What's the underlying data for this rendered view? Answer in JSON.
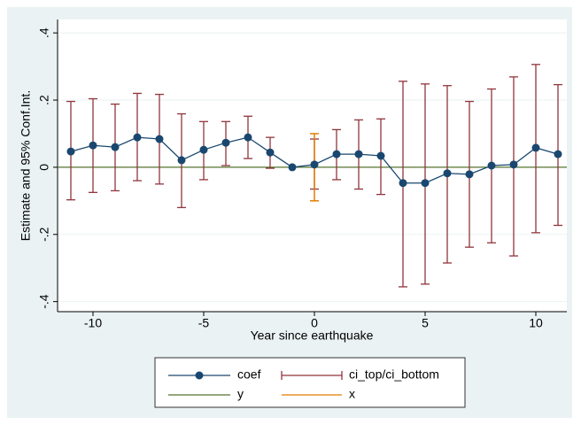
{
  "chart_data": {
    "type": "line",
    "x_label": "Year since earthquake",
    "y_label": "Estimate and 95% Conf.Int.",
    "x": [
      -11,
      -10,
      -9,
      -8,
      -7,
      -6,
      -5,
      -4,
      -3,
      -2,
      -1,
      0,
      1,
      2,
      3,
      4,
      5,
      6,
      7,
      8,
      9,
      10,
      11
    ],
    "series": [
      {
        "name": "coef",
        "color": "#1a476f",
        "values": [
          0.047,
          0.065,
          0.06,
          0.089,
          0.084,
          0.021,
          0.052,
          0.073,
          0.089,
          0.044,
          0,
          0.008,
          0.039,
          0.039,
          0.034,
          -0.047,
          -0.047,
          -0.018,
          -0.021,
          0.005,
          0.008,
          0.058,
          0.039
        ]
      },
      {
        "name": "ci_top/ci_bottom",
        "color": "#90353b",
        "top": [
          0.196,
          0.204,
          0.188,
          0.22,
          0.217,
          0.159,
          0.136,
          0.136,
          0.152,
          0.089,
          null,
          0.084,
          0.112,
          0.141,
          0.144,
          0.256,
          0.248,
          0.243,
          0.196,
          0.233,
          0.269,
          0.306,
          0.246
        ],
        "bottom": [
          -0.097,
          -0.075,
          -0.07,
          -0.04,
          -0.05,
          -0.12,
          -0.037,
          0.005,
          0.026,
          -0.003,
          null,
          -0.065,
          -0.037,
          -0.065,
          -0.081,
          -0.356,
          -0.348,
          -0.285,
          -0.238,
          -0.225,
          -0.264,
          -0.195,
          -0.173
        ]
      },
      {
        "name": "y",
        "color": "#55752f",
        "value": 0
      },
      {
        "name": "x",
        "color": "#e37e00",
        "at": 0,
        "low": -0.1,
        "high": 0.1
      }
    ],
    "xlim": [
      -11.6,
      11.4
    ],
    "ylim": [
      -0.43,
      0.44
    ],
    "xticks": [
      -10,
      -5,
      0,
      5,
      10
    ],
    "yticks": [
      {
        "value": -0.4,
        "label": "-.4"
      },
      {
        "value": -0.2,
        "label": "-.2"
      },
      0,
      {
        "value": 0.2,
        "label": ".2"
      },
      {
        "value": 0.4,
        "label": ".4"
      }
    ],
    "grid": true
  }
}
